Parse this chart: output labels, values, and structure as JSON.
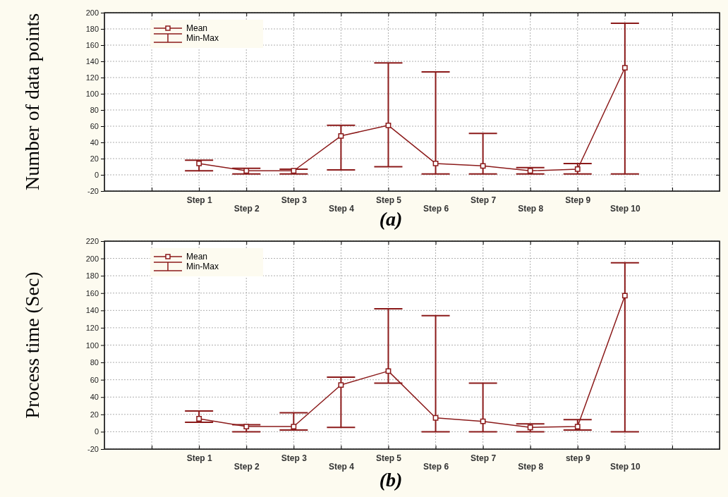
{
  "chart_data": [
    {
      "type": "line",
      "ylabel": "Number of data points",
      "annotations": [
        "Min-Max",
        "(a)"
      ],
      "categories": [
        null,
        "Step 1",
        "Step 2",
        "Step 3",
        "Step 4",
        "Step 5",
        "Step 6",
        "Step 7",
        "Step 8",
        "Step 9",
        "Step 10",
        null
      ],
      "series": [
        {
          "name": "Mean",
          "color": "#8b1a1a",
          "values": [
            null,
            14,
            5,
            5,
            48,
            61,
            14,
            11,
            5,
            7,
            132,
            null
          ],
          "errors": [
            null,
            [
              5,
              18
            ],
            [
              1,
              8
            ],
            [
              1,
              7
            ],
            [
              6,
              61
            ],
            [
              10,
              138
            ],
            [
              1,
              127
            ],
            [
              1,
              51
            ],
            [
              1,
              9
            ],
            [
              1,
              14
            ],
            [
              1,
              187
            ],
            null
          ]
        }
      ],
      "ylim": [
        -20,
        200
      ],
      "yticks": [
        -20,
        0,
        20,
        40,
        60,
        80,
        100,
        120,
        140,
        160,
        180,
        200
      ],
      "grid": true,
      "legend": "top left",
      "marker": "square",
      "line_style": "solid"
    },
    {
      "type": "line",
      "ylabel": "Process time (Sec)",
      "annotations": [
        "Min-Max",
        "(b)"
      ],
      "categories": [
        null,
        "Step 1",
        "Step 2",
        "Step 3",
        "Step 4",
        "Step 5",
        "Step 6",
        "Step 7",
        "Step 8",
        "step 9",
        "Step 10",
        null
      ],
      "series": [
        {
          "name": "Mean",
          "color": "#8b1a1a",
          "values": [
            null,
            15,
            6,
            6,
            54,
            70,
            16,
            12,
            5,
            6,
            157,
            null
          ],
          "errors": [
            null,
            [
              11,
              24
            ],
            [
              0,
              8
            ],
            [
              2,
              22
            ],
            [
              5,
              63
            ],
            [
              56,
              142
            ],
            [
              0,
              134
            ],
            [
              0,
              56
            ],
            [
              0,
              9
            ],
            [
              2,
              14
            ],
            [
              0,
              195
            ],
            null
          ]
        }
      ],
      "ylim": [
        -20,
        220
      ],
      "yticks": [
        -20,
        0,
        20,
        40,
        60,
        80,
        100,
        120,
        140,
        160,
        180,
        200,
        220
      ],
      "grid": true,
      "legend": "top left",
      "marker": "square",
      "line_style": "solid"
    }
  ]
}
